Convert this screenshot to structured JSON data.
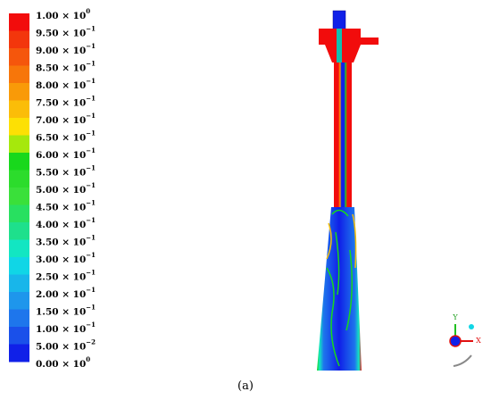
{
  "legend": {
    "labels": [
      {
        "text": "1.00 × 10",
        "exponent": "0"
      },
      {
        "text": "9.50 × 10",
        "exponent": "−1"
      },
      {
        "text": "9.00 × 10",
        "exponent": "−1"
      },
      {
        "text": "8.50 × 10",
        "exponent": "−1"
      },
      {
        "text": "8.00 × 10",
        "exponent": "−1"
      },
      {
        "text": "7.50 × 10",
        "exponent": "−1"
      },
      {
        "text": "7.00 × 10",
        "exponent": "−1"
      },
      {
        "text": "6.50 × 10",
        "exponent": "−1"
      },
      {
        "text": "6.00 × 10",
        "exponent": "−1"
      },
      {
        "text": "5.50 × 10",
        "exponent": "−1"
      },
      {
        "text": "5.00 × 10",
        "exponent": "−1"
      },
      {
        "text": "4.50 × 10",
        "exponent": "−1"
      },
      {
        "text": "4.00 × 10",
        "exponent": "−1"
      },
      {
        "text": "3.50 × 10",
        "exponent": "−1"
      },
      {
        "text": "3.00 × 10",
        "exponent": "−1"
      },
      {
        "text": "2.50 × 10",
        "exponent": "−1"
      },
      {
        "text": "2.00 × 10",
        "exponent": "−1"
      },
      {
        "text": "1.50 × 10",
        "exponent": "−1"
      },
      {
        "text": "1.00 × 10",
        "exponent": "−1"
      },
      {
        "text": "5.00 × 10",
        "exponent": "−2"
      },
      {
        "text": "0.00 × 10",
        "exponent": "0"
      }
    ],
    "colors": [
      "#f20c0c",
      "#f3360c",
      "#f5560c",
      "#f7760a",
      "#f99a08",
      "#fbbd08",
      "#fde004",
      "#a6e80c",
      "#18d81c",
      "#2cdc2c",
      "#3ae03a",
      "#28e060",
      "#1ee08c",
      "#12e6c2",
      "#10d6e6",
      "#18b6ea",
      "#1e96ec",
      "#1e76ec",
      "#1a50ea",
      "#1020e8"
    ]
  },
  "triad": {
    "y": "Y",
    "x": "X"
  },
  "caption": "(a)"
}
